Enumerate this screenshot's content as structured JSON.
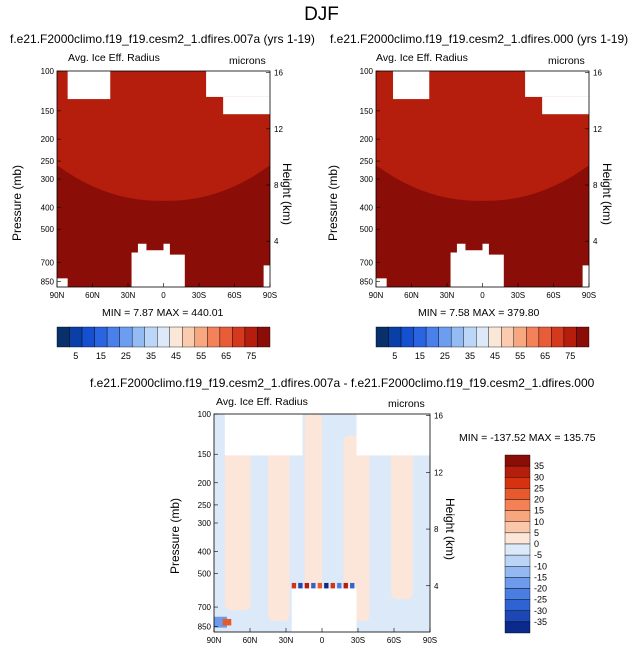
{
  "page_title": "DJF",
  "chart_data": [
    {
      "type": "heatmap",
      "case_title": "f.e21.F2000climo.f19_f19.cesm2_1.dfires.007a (yrs 1-19)",
      "left_string": "Avg. Ice Eff. Radius",
      "right_string": "microns",
      "ylabel": "Pressure (mb)",
      "ylabel_right": "Height (km)",
      "x_ticks": [
        "90N",
        "60N",
        "30N",
        "0",
        "30S",
        "60S",
        "90S"
      ],
      "y_ticks": [
        "100",
        "150",
        "200",
        "250",
        "300",
        "400",
        "500",
        "700",
        "850"
      ],
      "y_right_ticks": [
        "16",
        "12",
        "8",
        "4"
      ],
      "minmax": "MIN =  7.87   MAX = 440.01",
      "colorbar_labels": [
        "5",
        "15",
        "25",
        "35",
        "45",
        "55",
        "65",
        "75"
      ]
    },
    {
      "type": "heatmap",
      "case_title": "f.e21.F2000climo.f19_f19.cesm2_1.dfires.000 (yrs 1-19)",
      "left_string": "Avg. Ice Eff. Radius",
      "right_string": "microns",
      "ylabel": "Pressure (mb)",
      "ylabel_right": "Height (km)",
      "x_ticks": [
        "90N",
        "60N",
        "30N",
        "0",
        "30S",
        "60S",
        "90S"
      ],
      "y_ticks": [
        "100",
        "150",
        "200",
        "250",
        "300",
        "400",
        "500",
        "700",
        "850"
      ],
      "y_right_ticks": [
        "16",
        "12",
        "8",
        "4"
      ],
      "minmax": "MIN =  7.58   MAX = 379.80",
      "colorbar_labels": [
        "5",
        "15",
        "25",
        "35",
        "45",
        "55",
        "65",
        "75"
      ]
    },
    {
      "type": "heatmap",
      "case_title": "f.e21.F2000climo.f19_f19.cesm2_1.dfires.007a - f.e21.F2000climo.f19_f19.cesm2_1.dfires.000",
      "left_string": "Avg. Ice Eff. Radius",
      "right_string": "microns",
      "ylabel": "Pressure (mb)",
      "ylabel_right": "Height (km)",
      "x_ticks": [
        "90N",
        "60N",
        "30N",
        "0",
        "30S",
        "60S",
        "90S"
      ],
      "y_ticks": [
        "100",
        "150",
        "200",
        "250",
        "300",
        "400",
        "500",
        "700",
        "850"
      ],
      "y_right_ticks": [
        "16",
        "12",
        "8",
        "4"
      ],
      "minmax": "MIN = -137.52   MAX = 135.75",
      "colorbar_labels": [
        "35",
        "30",
        "25",
        "20",
        "15",
        "10",
        "5",
        "0",
        "-5",
        "-10",
        "-15",
        "-20",
        "-25",
        "-30",
        "-35"
      ]
    }
  ],
  "colors": {
    "abs_scale": [
      "#08306b",
      "#0b3fa8",
      "#1550d0",
      "#2a64e0",
      "#4a80ea",
      "#6b9ef0",
      "#93bcf5",
      "#bcd6f8",
      "#dde9f8",
      "#fbe7d8",
      "#fbcbb0",
      "#f8a880",
      "#f3825a",
      "#e85c37",
      "#d4391d",
      "#b51d0d",
      "#8b0d07"
    ],
    "diff_scale": [
      "#8b0d07",
      "#b51d0d",
      "#d6320f",
      "#e65a2e",
      "#f38155",
      "#f8a67e",
      "#fbc7aa",
      "#fce6d9",
      "#dce9f8",
      "#bbd5f7",
      "#93b8f2",
      "#6d9aeb",
      "#4a7ee2",
      "#2f62d2",
      "#1d47b5",
      "#0b2a8c"
    ]
  }
}
